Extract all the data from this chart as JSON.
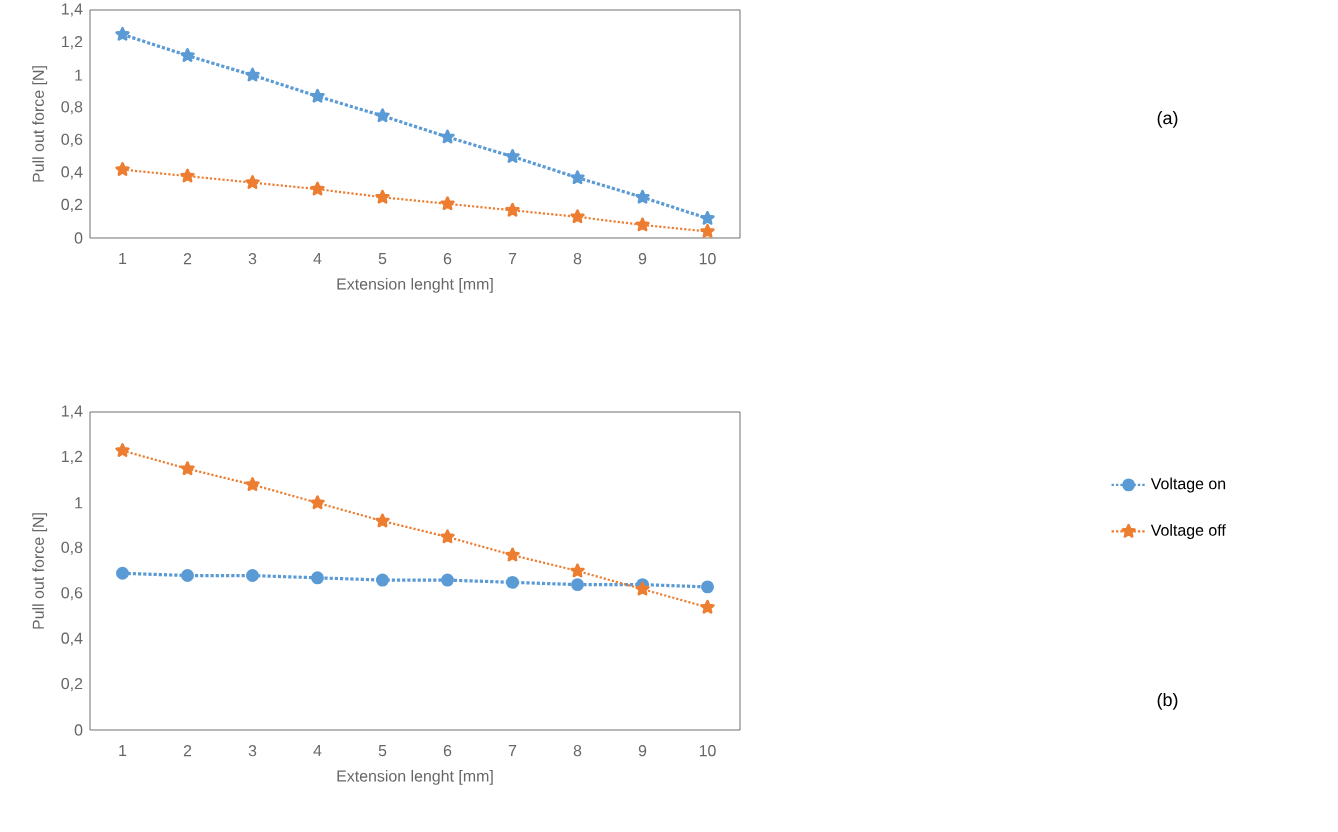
{
  "chart_data": [
    {
      "type": "line",
      "xlabel": "Extension lenght  [mm]",
      "ylabel": "Pull out force  [N]",
      "categories": [
        "1",
        "2",
        "3",
        "4",
        "5",
        "6",
        "7",
        "8",
        "9",
        "10"
      ],
      "series": [
        {
          "color": "#5b9bd5",
          "marker": "star",
          "values": [
            1.25,
            1.12,
            1.0,
            0.87,
            0.75,
            0.62,
            0.5,
            0.37,
            0.25,
            0.12
          ]
        },
        {
          "color": "#ed7d31",
          "marker": "star",
          "values": [
            0.42,
            0.38,
            0.34,
            0.3,
            0.25,
            0.21,
            0.17,
            0.13,
            0.08,
            0.04
          ]
        }
      ],
      "ylim": [
        0,
        1.4
      ],
      "yticks": [
        0,
        {
          "value": 0.2,
          "label": "0,2"
        },
        {
          "value": 0.4,
          "label": "0,4"
        },
        {
          "value": 0.6,
          "label": "0,6"
        },
        {
          "value": 0.8,
          "label": "0,8"
        },
        1,
        {
          "value": 1.2,
          "label": "1,2"
        },
        {
          "value": 1.4,
          "label": "1,4"
        }
      ],
      "line_style": "dotted",
      "grid": false,
      "annotations": [
        "(a)"
      ]
    },
    {
      "type": "line",
      "xlabel": "Extension lenght  [mm]",
      "ylabel": "Pull out force  [N]",
      "categories": [
        "1",
        "2",
        "3",
        "4",
        "5",
        "6",
        "7",
        "8",
        "9",
        "10"
      ],
      "series": [
        {
          "name": "Voltage on",
          "color": "#5b9bd5",
          "marker": "circle",
          "values": [
            0.69,
            0.68,
            0.68,
            0.67,
            0.66,
            0.66,
            0.65,
            0.64,
            0.64,
            0.63
          ]
        },
        {
          "name": "Voltage off",
          "color": "#ed7d31",
          "marker": "star",
          "values": [
            1.23,
            1.15,
            1.08,
            1.0,
            0.92,
            0.85,
            0.77,
            0.7,
            0.62,
            0.54
          ]
        }
      ],
      "ylim": [
        0,
        1.4
      ],
      "yticks": [
        0,
        {
          "value": 0.2,
          "label": "0,2"
        },
        {
          "value": 0.4,
          "label": "0,4"
        },
        {
          "value": 0.6,
          "label": "0,6"
        },
        {
          "value": 0.8,
          "label": "0,8"
        },
        1,
        {
          "value": 1.2,
          "label": "1,2"
        },
        {
          "value": 1.4,
          "label": "1,4"
        }
      ],
      "line_style": "dotted",
      "grid": false,
      "legend": "right",
      "annotations": [
        "(b)"
      ]
    }
  ]
}
